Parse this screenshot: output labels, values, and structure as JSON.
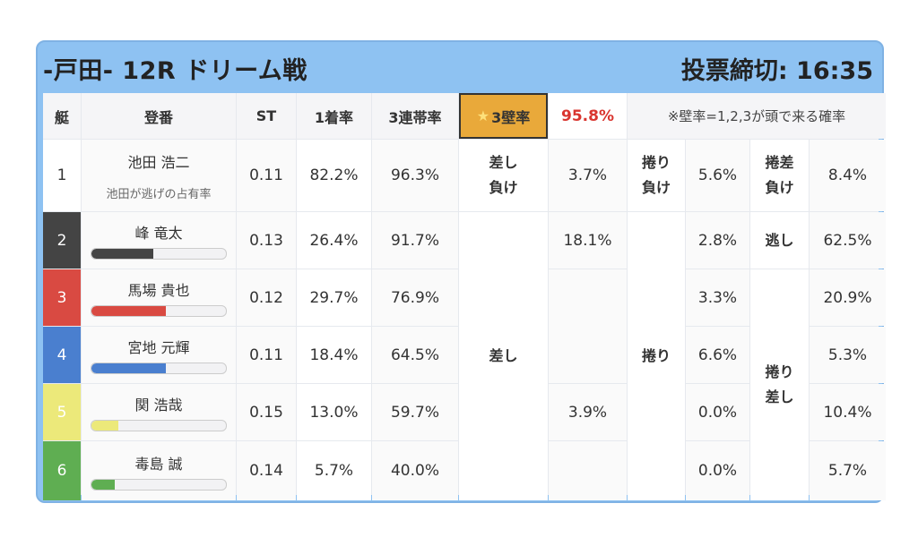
{
  "header": {
    "title": "-戸田- 12R ドリーム戦",
    "deadline": "投票締切: 16:35"
  },
  "columns": {
    "lane": "艇",
    "racer": "登番",
    "st": "ST",
    "win": "1着率",
    "top3": "3連帯率",
    "wall_star": "★",
    "wall": "3壁率",
    "wall_rate": "95.8%",
    "note": "※壁率=1,2,3が頭で来る確率"
  },
  "row1": {
    "lane": "1",
    "name": "池田 浩二",
    "sub": "池田が逃げの占有率",
    "st": "0.11",
    "win": "82.2%",
    "top3": "96.3%",
    "pattern_a_l1": "差し",
    "pattern_a_l2": "負け",
    "pattern_a_rate": "3.7%",
    "pattern_b_l1": "捲り",
    "pattern_b_l2": "負け",
    "pattern_b_rate": "5.6%",
    "pattern_c_l1": "捲差",
    "pattern_c_l2": "負け",
    "pattern_c_rate": "8.4%"
  },
  "racers": [
    {
      "lane": "2",
      "name": "峰 竜太",
      "st": "0.13",
      "win": "26.4%",
      "top3": "91.7%",
      "lane_color": "#444444",
      "bar_color": "#444444",
      "bar_level": 0.46,
      "rate_a": "18.1%",
      "rate_b": "2.8%",
      "rate_c": "62.5%"
    },
    {
      "lane": "3",
      "name": "馬場 貴也",
      "st": "0.12",
      "win": "29.7%",
      "top3": "76.9%",
      "lane_color": "#d94a42",
      "bar_color": "#d94a42",
      "bar_level": 0.55,
      "rate_b": "3.3%",
      "rate_c": "20.9%"
    },
    {
      "lane": "4",
      "name": "宮地 元輝",
      "st": "0.11",
      "win": "18.4%",
      "top3": "64.5%",
      "lane_color": "#4a7fcf",
      "bar_color": "#4a7fcf",
      "bar_level": 0.55,
      "rate_a": "3.9%",
      "rate_b": "6.6%",
      "rate_c": "5.3%"
    },
    {
      "lane": "5",
      "name": "関 浩哉",
      "st": "0.15",
      "win": "13.0%",
      "top3": "59.7%",
      "lane_color": "#ece97a",
      "bar_color": "#ece97a",
      "bar_level": 0.2,
      "rate_b": "0.0%",
      "rate_c": "10.4%"
    },
    {
      "lane": "6",
      "name": "毒島 誠",
      "st": "0.14",
      "win": "5.7%",
      "top3": "40.0%",
      "lane_color": "#5fae52",
      "bar_color": "#5fae52",
      "bar_level": 0.17,
      "rate_b": "0.0%",
      "rate_c": "5.7%"
    }
  ],
  "labels": {
    "sashi": "差し",
    "makuri": "捲り",
    "nige": "逃し",
    "makurisashi_l1": "捲り",
    "makurisashi_l2": "差し"
  }
}
